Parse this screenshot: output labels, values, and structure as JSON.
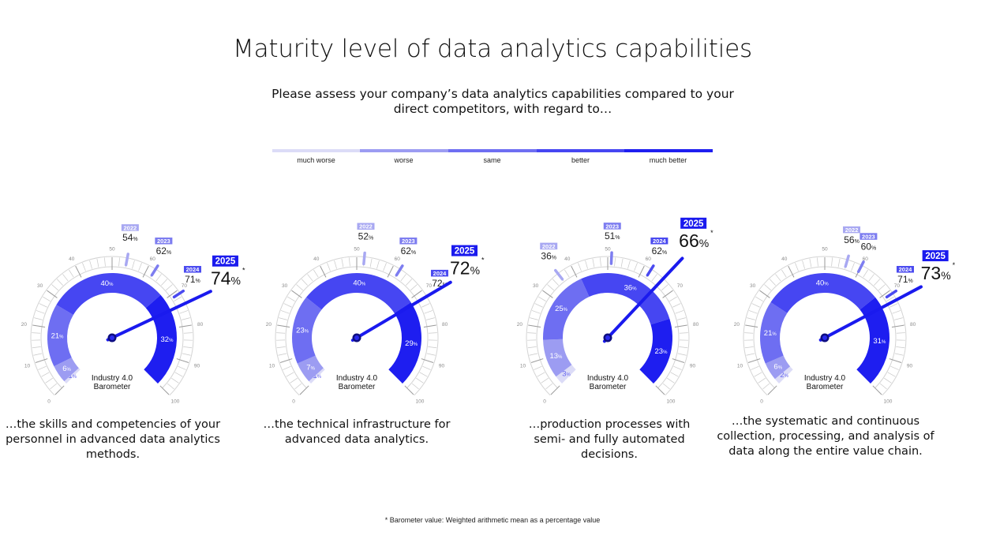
{
  "title": "Maturity level of data analytics capabilities",
  "subtitle": "Please assess your company’s data analytics capabilities compared to your direct competitors, with regard to…",
  "legend": [
    {
      "label": "much worse",
      "color": "#dcdcf7"
    },
    {
      "label": "worse",
      "color": "#9c9cf2"
    },
    {
      "label": "same",
      "color": "#6e6ef2"
    },
    {
      "label": "better",
      "color": "#4646f2"
    },
    {
      "label": "much better",
      "color": "#1e1ef0"
    }
  ],
  "footnote": "* Barometer value: Weighted arithmetic mean as a percentage value",
  "chart_data": [
    {
      "type": "gauge",
      "caption": "…the skills and competencies of your personnel in advanced data analytics methods.",
      "center_label": [
        "Industry 4.0",
        "Barometer"
      ],
      "scale": [
        0,
        100
      ],
      "ticks": [
        0,
        10,
        20,
        30,
        40,
        50,
        60,
        70,
        80,
        90,
        100
      ],
      "segments": [
        {
          "category": "much worse",
          "value": 1
        },
        {
          "category": "worse",
          "value": 6
        },
        {
          "category": "same",
          "value": 21
        },
        {
          "category": "better",
          "value": 40
        },
        {
          "category": "much better",
          "value": 32
        }
      ],
      "years": [
        {
          "year": "2022",
          "value": 54
        },
        {
          "year": "2023",
          "value": 62
        },
        {
          "year": "2024",
          "value": 71
        },
        {
          "year": "2025",
          "value": 74
        }
      ],
      "unit": "%"
    },
    {
      "type": "gauge",
      "caption": "…the technical infrastructure for advanced data analytics.",
      "center_label": [
        "Industry 4.0",
        "Barometer"
      ],
      "scale": [
        0,
        100
      ],
      "ticks": [
        0,
        10,
        20,
        30,
        40,
        50,
        60,
        70,
        80,
        90,
        100
      ],
      "segments": [
        {
          "category": "much worse",
          "value": 1
        },
        {
          "category": "worse",
          "value": 7
        },
        {
          "category": "same",
          "value": 23
        },
        {
          "category": "better",
          "value": 40
        },
        {
          "category": "much better",
          "value": 29
        }
      ],
      "years": [
        {
          "year": "2022",
          "value": 52
        },
        {
          "year": "2023",
          "value": 62
        },
        {
          "year": "2024",
          "value": 72
        },
        {
          "year": "2025",
          "value": 72
        }
      ],
      "unit": "%"
    },
    {
      "type": "gauge",
      "caption": "…production processes with semi- and fully automated decisions.",
      "center_label": [
        "Industry 4.0",
        "Barometer"
      ],
      "scale": [
        0,
        100
      ],
      "ticks": [
        0,
        10,
        20,
        30,
        40,
        50,
        60,
        70,
        80,
        90,
        100
      ],
      "segments": [
        {
          "category": "much worse",
          "value": 3
        },
        {
          "category": "worse",
          "value": 13
        },
        {
          "category": "same",
          "value": 25
        },
        {
          "category": "better",
          "value": 36
        },
        {
          "category": "much better",
          "value": 23
        }
      ],
      "years": [
        {
          "year": "2022",
          "value": 36
        },
        {
          "year": "2023",
          "value": 51
        },
        {
          "year": "2024",
          "value": 62
        },
        {
          "year": "2025",
          "value": 66
        }
      ],
      "unit": "%"
    },
    {
      "type": "gauge",
      "caption": "…the systematic and continuous collection, processing, and analysis of data along the entire value chain.",
      "center_label": [
        "Industry 4.0",
        "Barometer"
      ],
      "scale": [
        0,
        100
      ],
      "ticks": [
        0,
        10,
        20,
        30,
        40,
        50,
        60,
        70,
        80,
        90,
        100
      ],
      "segments": [
        {
          "category": "much worse",
          "value": 2
        },
        {
          "category": "worse",
          "value": 6
        },
        {
          "category": "same",
          "value": 21
        },
        {
          "category": "better",
          "value": 40
        },
        {
          "category": "much better",
          "value": 31
        }
      ],
      "years": [
        {
          "year": "2022",
          "value": 56
        },
        {
          "year": "2023",
          "value": 60
        },
        {
          "year": "2024",
          "value": 71
        },
        {
          "year": "2025",
          "value": 73
        }
      ],
      "unit": "%"
    }
  ]
}
